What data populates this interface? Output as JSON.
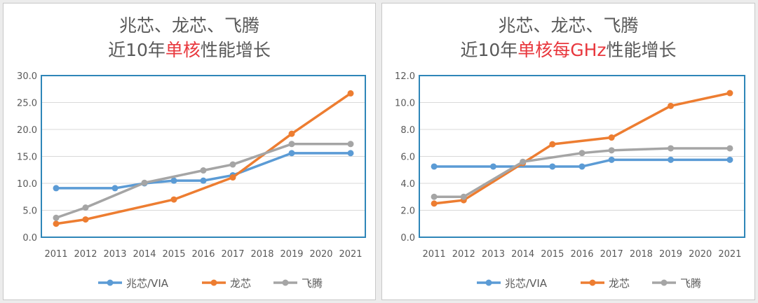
{
  "colors": {
    "series": [
      "#5b9bd5",
      "#ed7d31",
      "#a5a5a5"
    ],
    "highlight": "#e8373d",
    "plot_border": "#2e86b8",
    "grid": "#d9d9d9",
    "text": "#595959"
  },
  "chart_data": [
    {
      "type": "line",
      "title": {
        "line1": "兆芯、龙芯、飞腾",
        "line2_before": "近10年",
        "line2_highlight": "单核",
        "line2_after": "性能增长"
      },
      "xlabel": "",
      "ylabel": "",
      "categories": [
        "2011",
        "2012",
        "2013",
        "2014",
        "2015",
        "2016",
        "2017",
        "2018",
        "2019",
        "2020",
        "2021"
      ],
      "ylim": [
        0,
        30
      ],
      "ytick_labels": [
        "0.0",
        "5.0",
        "10.0",
        "15.0",
        "20.0",
        "25.0",
        "30.0"
      ],
      "grid": true,
      "legend": "bottom",
      "series": [
        {
          "name": "兆芯/VIA",
          "points": [
            [
              "2011",
              9.1
            ],
            [
              "2013",
              9.1
            ],
            [
              "2014",
              10
            ],
            [
              "2015",
              10.5
            ],
            [
              "2016",
              10.5
            ],
            [
              "2017",
              11.5
            ],
            [
              "2019",
              15.6
            ],
            [
              "2021",
              15.6
            ]
          ]
        },
        {
          "name": "龙芯",
          "points": [
            [
              "2011",
              2.5
            ],
            [
              "2012",
              3.3
            ],
            [
              "2015",
              7
            ],
            [
              "2017",
              11.1
            ],
            [
              "2019",
              19.2
            ],
            [
              "2021",
              26.7
            ]
          ]
        },
        {
          "name": "飞腾",
          "points": [
            [
              "2011",
              3.6
            ],
            [
              "2012",
              5.5
            ],
            [
              "2014",
              10.1
            ],
            [
              "2016",
              12.4
            ],
            [
              "2017",
              13.5
            ],
            [
              "2019",
              17.3
            ],
            [
              "2021",
              17.3
            ]
          ]
        }
      ]
    },
    {
      "type": "line",
      "title": {
        "line1": "兆芯、龙芯、飞腾",
        "line2_before": "近10年",
        "line2_highlight": "单核每GHz",
        "line2_after": "性能增长"
      },
      "xlabel": "",
      "ylabel": "",
      "categories": [
        "2011",
        "2012",
        "2013",
        "2014",
        "2015",
        "2016",
        "2017",
        "2018",
        "2019",
        "2020",
        "2021"
      ],
      "ylim": [
        0,
        12
      ],
      "ytick_labels": [
        "0.0",
        "2.0",
        "4.0",
        "6.0",
        "8.0",
        "10.0",
        "12.0"
      ],
      "grid": true,
      "legend": "bottom",
      "series": [
        {
          "name": "兆芯/VIA",
          "points": [
            [
              "2011",
              5.25
            ],
            [
              "2013",
              5.25
            ],
            [
              "2015",
              5.25
            ],
            [
              "2016",
              5.25
            ],
            [
              "2017",
              5.75
            ],
            [
              "2019",
              5.75
            ],
            [
              "2021",
              5.75
            ]
          ]
        },
        {
          "name": "龙芯",
          "points": [
            [
              "2011",
              2.5
            ],
            [
              "2012",
              2.75
            ],
            [
              "2014",
              5.5
            ],
            [
              "2015",
              6.9
            ],
            [
              "2017",
              7.4
            ],
            [
              "2019",
              9.75
            ],
            [
              "2021",
              10.7
            ]
          ]
        },
        {
          "name": "飞腾",
          "points": [
            [
              "2011",
              3
            ],
            [
              "2012",
              3
            ],
            [
              "2014",
              5.6
            ],
            [
              "2016",
              6.25
            ],
            [
              "2017",
              6.45
            ],
            [
              "2019",
              6.6
            ],
            [
              "2021",
              6.6
            ]
          ]
        }
      ]
    }
  ]
}
